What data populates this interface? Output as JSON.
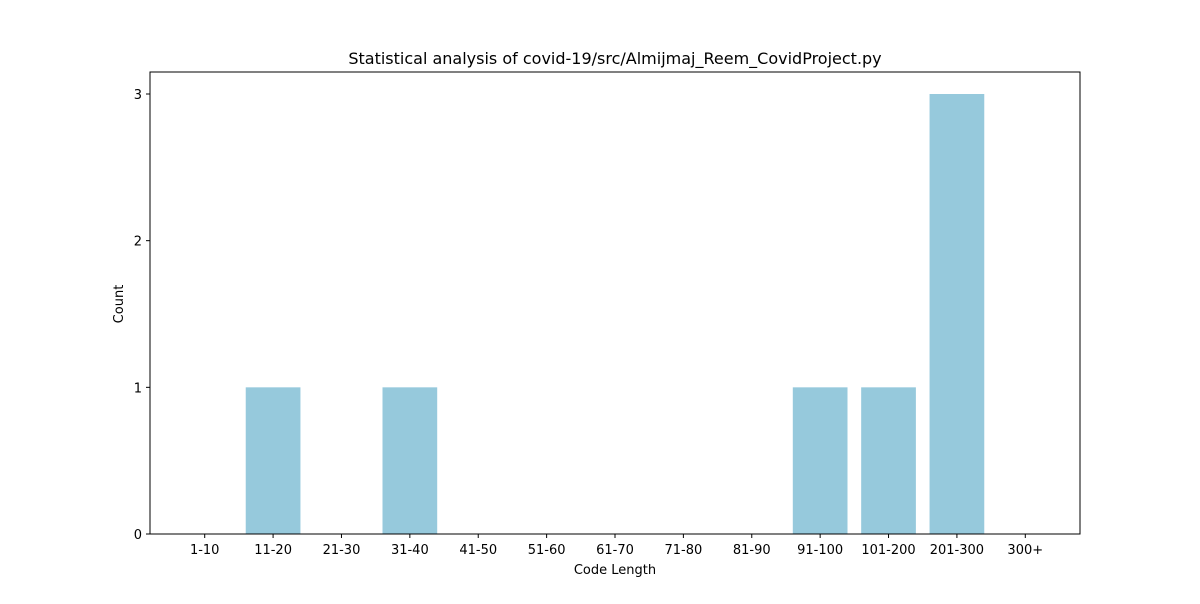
{
  "chart_data": {
    "type": "bar",
    "title": "Statistical analysis of covid-19/src/Almijmaj_Reem_CovidProject.py",
    "xlabel": "Code Length",
    "ylabel": "Count",
    "categories": [
      "1-10",
      "11-20",
      "21-30",
      "31-40",
      "41-50",
      "51-60",
      "61-70",
      "71-80",
      "81-90",
      "91-100",
      "101-200",
      "201-300",
      "300+"
    ],
    "values": [
      0,
      1,
      0,
      1,
      0,
      0,
      0,
      0,
      0,
      1,
      1,
      3,
      0
    ],
    "yticks": [
      0,
      1,
      2,
      3
    ],
    "ylim": [
      0,
      3.15
    ],
    "bar_color": "#96c9dc",
    "grid": false,
    "legend": false
  }
}
